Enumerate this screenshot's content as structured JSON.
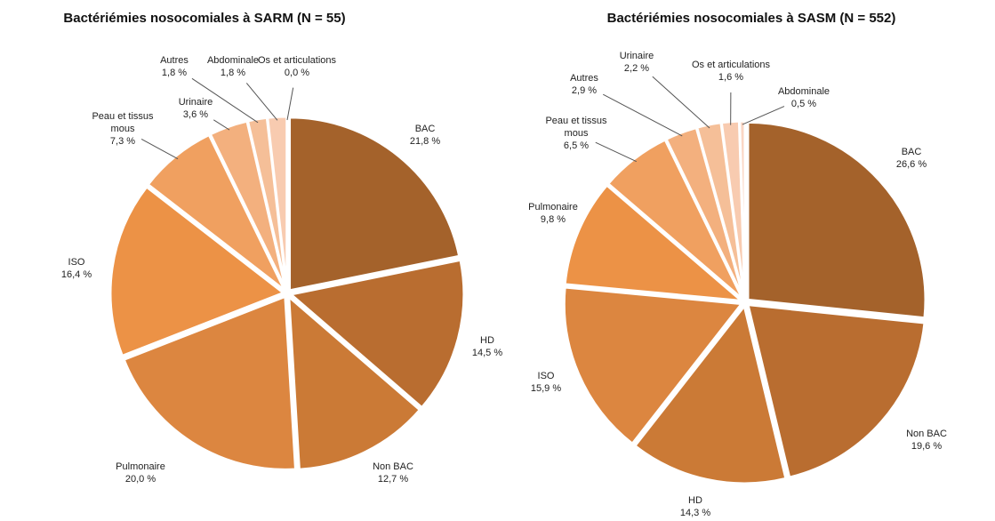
{
  "chart_data": [
    {
      "type": "pie",
      "title": "Bactériémies nosocomiales à SARM (N = 55)",
      "categories": [
        "BAC",
        "HD",
        "Non BAC",
        "Pulmonaire",
        "ISO",
        "Peau et tissus mous",
        "Urinaire",
        "Autres",
        "Abdominale",
        "Os et articulations"
      ],
      "values": [
        21.8,
        14.5,
        12.7,
        20.0,
        16.4,
        7.3,
        3.6,
        1.8,
        1.8,
        0.0
      ],
      "value_labels": [
        "21,8 %",
        "14,5 %",
        "12,7 %",
        "20,0 %",
        "16,4 %",
        "7,3 %",
        "3,6 %",
        "1,8 %",
        "1,8 %",
        "0,0 %"
      ],
      "colors": [
        "#a4622b",
        "#b96d30",
        "#cb7a36",
        "#dc8640",
        "#ec9246",
        "#f0a060",
        "#f3b07e",
        "#f5bf98",
        "#f8cbb0",
        "#fad6c4"
      ]
    },
    {
      "type": "pie",
      "title": "Bactériémies nosocomiales à SASM (N = 552)",
      "categories": [
        "BAC",
        "Non BAC",
        "HD",
        "ISO",
        "Pulmonaire",
        "Peau et tissus mous",
        "Autres",
        "Urinaire",
        "Os et articulations",
        "Abdominale"
      ],
      "values": [
        26.6,
        19.6,
        14.3,
        15.9,
        9.8,
        6.5,
        2.9,
        2.2,
        1.6,
        0.5
      ],
      "value_labels": [
        "26,6 %",
        "19,6 %",
        "14,3 %",
        "15,9 %",
        "9,8 %",
        "6,5 %",
        "2,9 %",
        "2,2 %",
        "1,6 %",
        "0,5 %"
      ],
      "colors": [
        "#a4622b",
        "#b96d30",
        "#cb7a36",
        "#dc8640",
        "#ec9246",
        "#f0a060",
        "#f3b07e",
        "#f5bf98",
        "#f8cbb0",
        "#fad6c4"
      ]
    }
  ]
}
